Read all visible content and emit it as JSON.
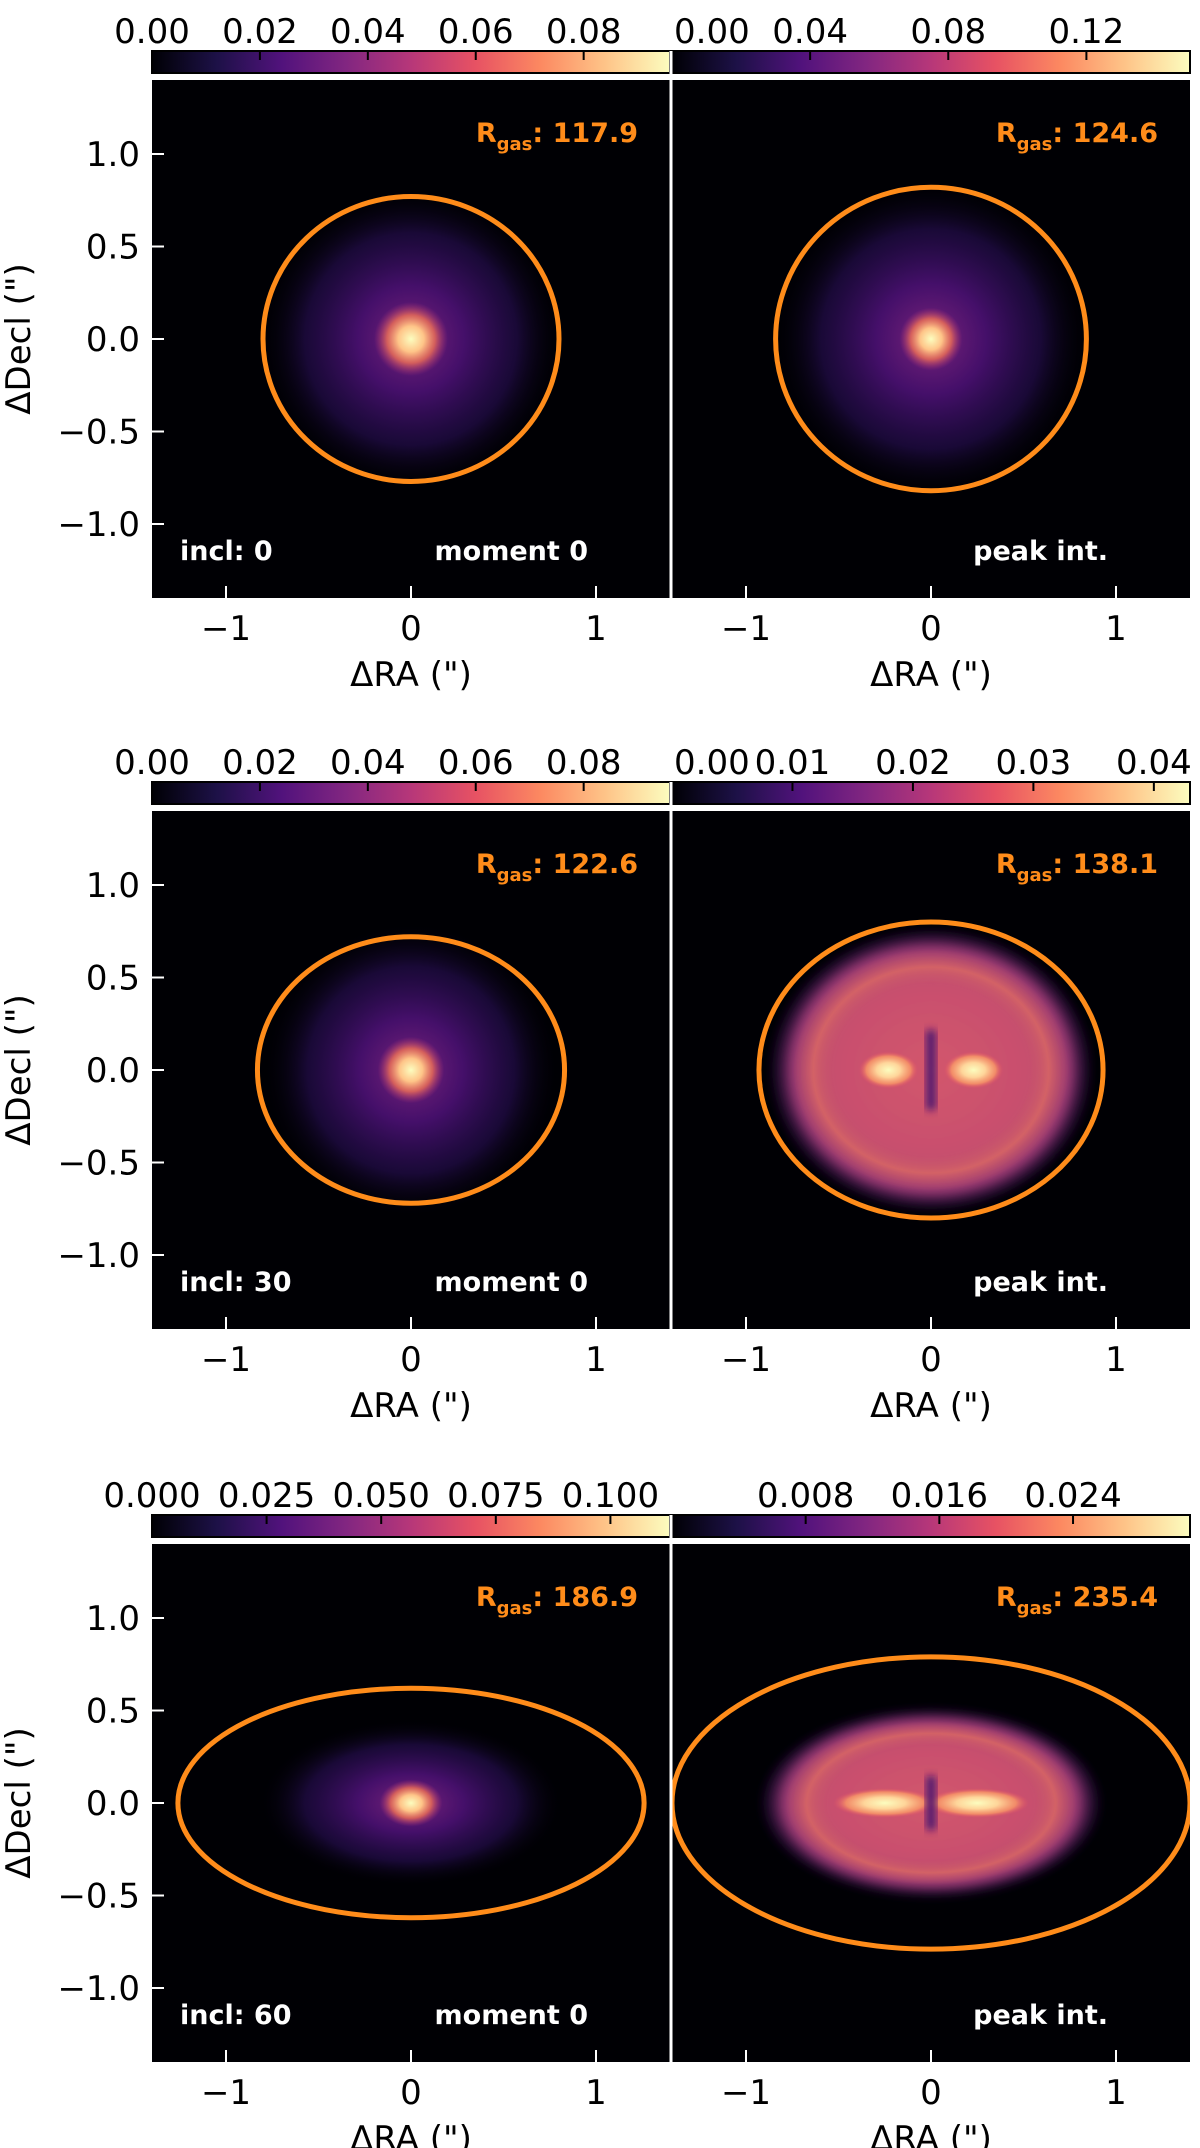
{
  "colors": {
    "ellipse": "#ff8c1a",
    "background": "#000004",
    "separator": "#ffffff",
    "colormap": [
      "#000004",
      "#1d1147",
      "#51127c",
      "#822681",
      "#b73779",
      "#e75263",
      "#fc8961",
      "#fec488",
      "#fcfdbf"
    ]
  },
  "axes": {
    "xlabel": "ΔRA (\")",
    "ylabel": "ΔDecl (\")",
    "xlim": [
      -1.4,
      1.4
    ],
    "ylim": [
      -1.4,
      1.4
    ],
    "xticks": [
      -1,
      0,
      1
    ],
    "xtick_labels": [
      "−1",
      "0",
      "1"
    ],
    "yticks": [
      1.0,
      0.5,
      0.0,
      -0.5,
      -1.0
    ],
    "ytick_labels": [
      "1.0",
      "0.5",
      "0.0",
      "−0.5",
      "−1.0"
    ]
  },
  "rgas_prefix": "R",
  "rgas_sub": "gas",
  "chart_data": [
    {
      "type": "heatmap",
      "row": 0,
      "col": 0,
      "incl_label": "incl: 0",
      "map_label": "moment 0",
      "rgas": "117.9",
      "cbar_min": 0,
      "cbar_max": 0.096,
      "cbar_ticks": [
        0.0,
        0.02,
        0.04,
        0.06,
        0.08
      ],
      "cbar_labels": [
        "0.00",
        "0.02",
        "0.04",
        "0.06",
        "0.08"
      ],
      "ellipse": {
        "cx": 0,
        "cy": 0,
        "rx": 0.8,
        "ry": 0.77
      },
      "emission": "moment",
      "core": 0.2,
      "halo": 0.82
    },
    {
      "type": "heatmap",
      "row": 0,
      "col": 1,
      "incl_label": "",
      "map_label": "peak int.",
      "rgas": "124.6",
      "cbar_min": 0,
      "cbar_max": 0.15,
      "cbar_ticks": [
        0.04,
        0.08,
        0.12
      ],
      "cbar_labels": [
        "0.00",
        "0.04",
        "0.08",
        "0.12"
      ],
      "cbar_label_values": [
        0.0,
        0.04,
        0.08,
        0.12
      ],
      "ellipse": {
        "cx": 0,
        "cy": 0,
        "rx": 0.84,
        "ry": 0.82
      },
      "emission": "moment",
      "core": 0.17,
      "halo": 0.85
    },
    {
      "type": "heatmap",
      "row": 1,
      "col": 0,
      "incl_label": "incl: 30",
      "map_label": "moment 0",
      "rgas": "122.6",
      "cbar_min": 0,
      "cbar_max": 0.096,
      "cbar_ticks": [
        0.0,
        0.02,
        0.04,
        0.06,
        0.08
      ],
      "cbar_labels": [
        "0.00",
        "0.02",
        "0.04",
        "0.06",
        "0.08"
      ],
      "ellipse": {
        "cx": 0,
        "cy": 0,
        "rx": 0.83,
        "ry": 0.72
      },
      "emission": "moment",
      "core": 0.18,
      "halo": 0.8
    },
    {
      "type": "heatmap",
      "row": 1,
      "col": 1,
      "incl_label": "",
      "map_label": "peak int.",
      "rgas": "138.1",
      "cbar_min": 0,
      "cbar_max": 0.043,
      "cbar_ticks": [
        0.0,
        0.01,
        0.02,
        0.03,
        0.04
      ],
      "cbar_labels": [
        "0.00",
        "0.01",
        "0.02",
        "0.03",
        "0.04"
      ],
      "ellipse": {
        "cx": 0,
        "cy": 0,
        "rx": 0.93,
        "ry": 0.8
      },
      "emission": "peak",
      "diskRx": 0.88,
      "diskRy": 0.77,
      "lobeX": 0.23,
      "lobeRx": 0.16,
      "lobeRy": 0.1
    },
    {
      "type": "heatmap",
      "row": 2,
      "col": 0,
      "incl_label": "incl: 60",
      "map_label": "moment 0",
      "rgas": "186.9",
      "cbar_min": 0,
      "cbar_max": 0.113,
      "cbar_ticks": [
        0.0,
        0.025,
        0.05,
        0.075,
        0.1
      ],
      "cbar_labels": [
        "0.000",
        "0.025",
        "0.050",
        "0.075",
        "0.100"
      ],
      "ellipse": {
        "cx": 0,
        "cy": 0,
        "rx": 1.26,
        "ry": 0.62
      },
      "emission": "moment_flat",
      "core": 0.17,
      "halo": 0.82
    },
    {
      "type": "heatmap",
      "row": 2,
      "col": 1,
      "incl_label": "",
      "map_label": "peak int.",
      "rgas": "235.4",
      "cbar_min": 0,
      "cbar_max": 0.031,
      "cbar_ticks": [
        0.008,
        0.016,
        0.024
      ],
      "cbar_labels": [
        "0.008",
        "0.016",
        "0.024"
      ],
      "ellipse": {
        "cx": 0,
        "cy": 0,
        "rx": 1.4,
        "ry": 0.79
      },
      "emission": "peak",
      "diskRx": 0.93,
      "diskRy": 0.52,
      "lobeX": 0.25,
      "lobeRx": 0.28,
      "lobeRy": 0.08
    }
  ]
}
